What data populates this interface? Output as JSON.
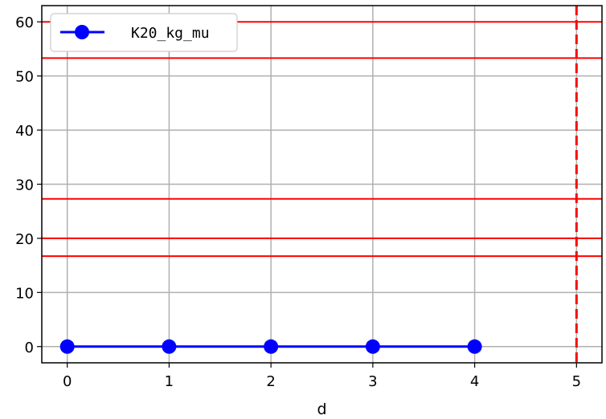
{
  "chart_data": {
    "type": "line",
    "title": "",
    "xlabel": "d",
    "ylabel": "",
    "xlim": [
      -0.25,
      5.25
    ],
    "ylim": [
      -3,
      63
    ],
    "xticks": [
      0,
      1,
      2,
      3,
      4,
      5
    ],
    "yticks": [
      0,
      10,
      20,
      30,
      40,
      50,
      60
    ],
    "grid": true,
    "legend_position": "top-left",
    "series": [
      {
        "name": "K20_kg_mu",
        "x": [
          0,
          1,
          2,
          3,
          4
        ],
        "y": [
          0,
          0,
          0,
          0,
          0
        ],
        "color": "#0000ff",
        "marker": "circle"
      }
    ],
    "reference_lines": {
      "horizontal": [
        60,
        53.3,
        27.3,
        20,
        16.7
      ],
      "vertical": [
        5
      ],
      "color": "#ff0000",
      "vertical_style": "dashed"
    }
  }
}
